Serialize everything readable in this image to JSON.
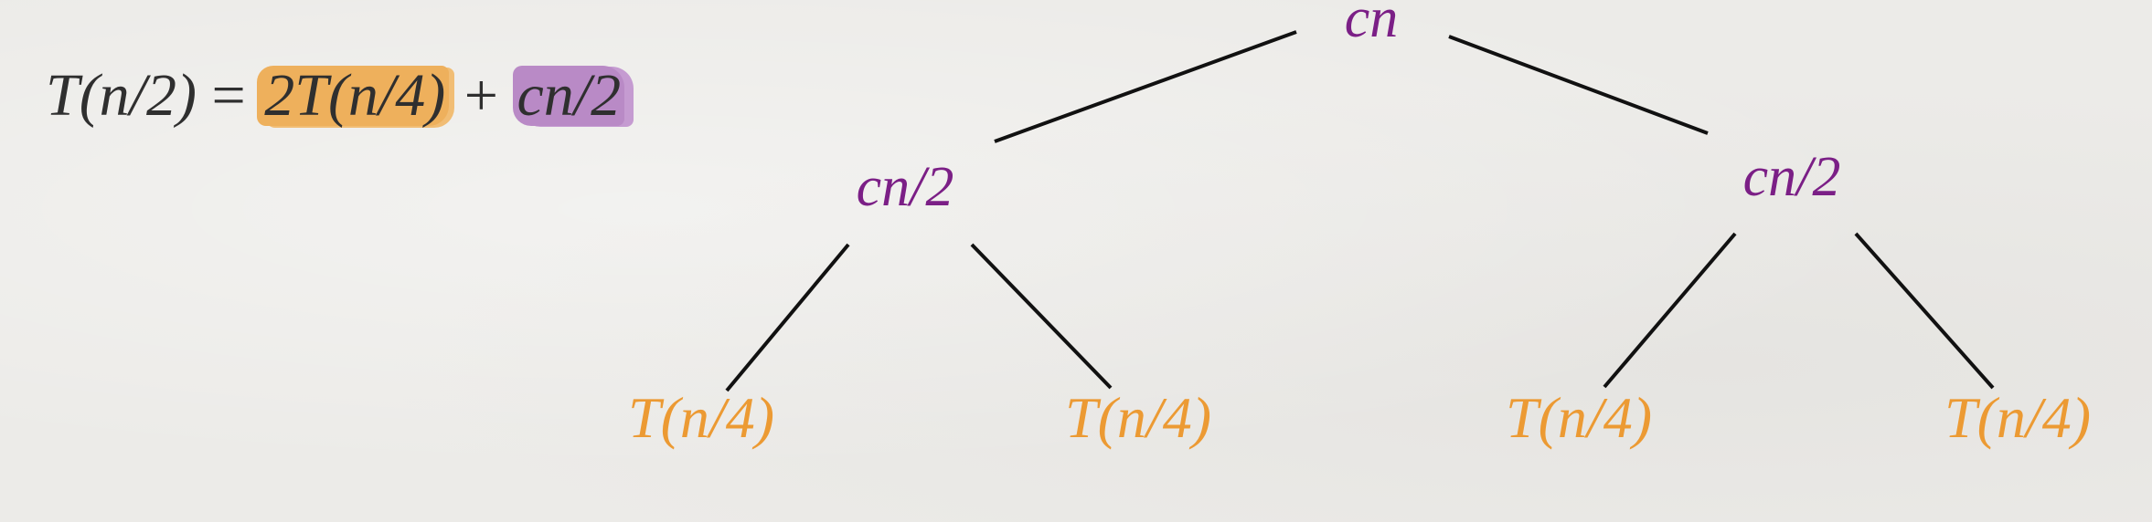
{
  "equation": {
    "lhs": "T(n/2)",
    "equals": " = ",
    "term_recursive": "2T(n/4)",
    "plus": " + ",
    "term_work": "cn/2"
  },
  "tree": {
    "root": {
      "label": "cn"
    },
    "level1": [
      {
        "label": "cn/2"
      },
      {
        "label": "cn/2"
      }
    ],
    "level2": [
      {
        "label": "T(n/4)"
      },
      {
        "label": "T(n/4)"
      },
      {
        "label": "T(n/4)"
      },
      {
        "label": "T(n/4)"
      }
    ]
  },
  "colors": {
    "work_purple": "#7b1f86",
    "recursive_orange": "#ec9a33",
    "highlight_orange": "#eeb05c",
    "highlight_purple": "#b98ac6",
    "edge": "#111111",
    "text": "#2f2f2f"
  }
}
